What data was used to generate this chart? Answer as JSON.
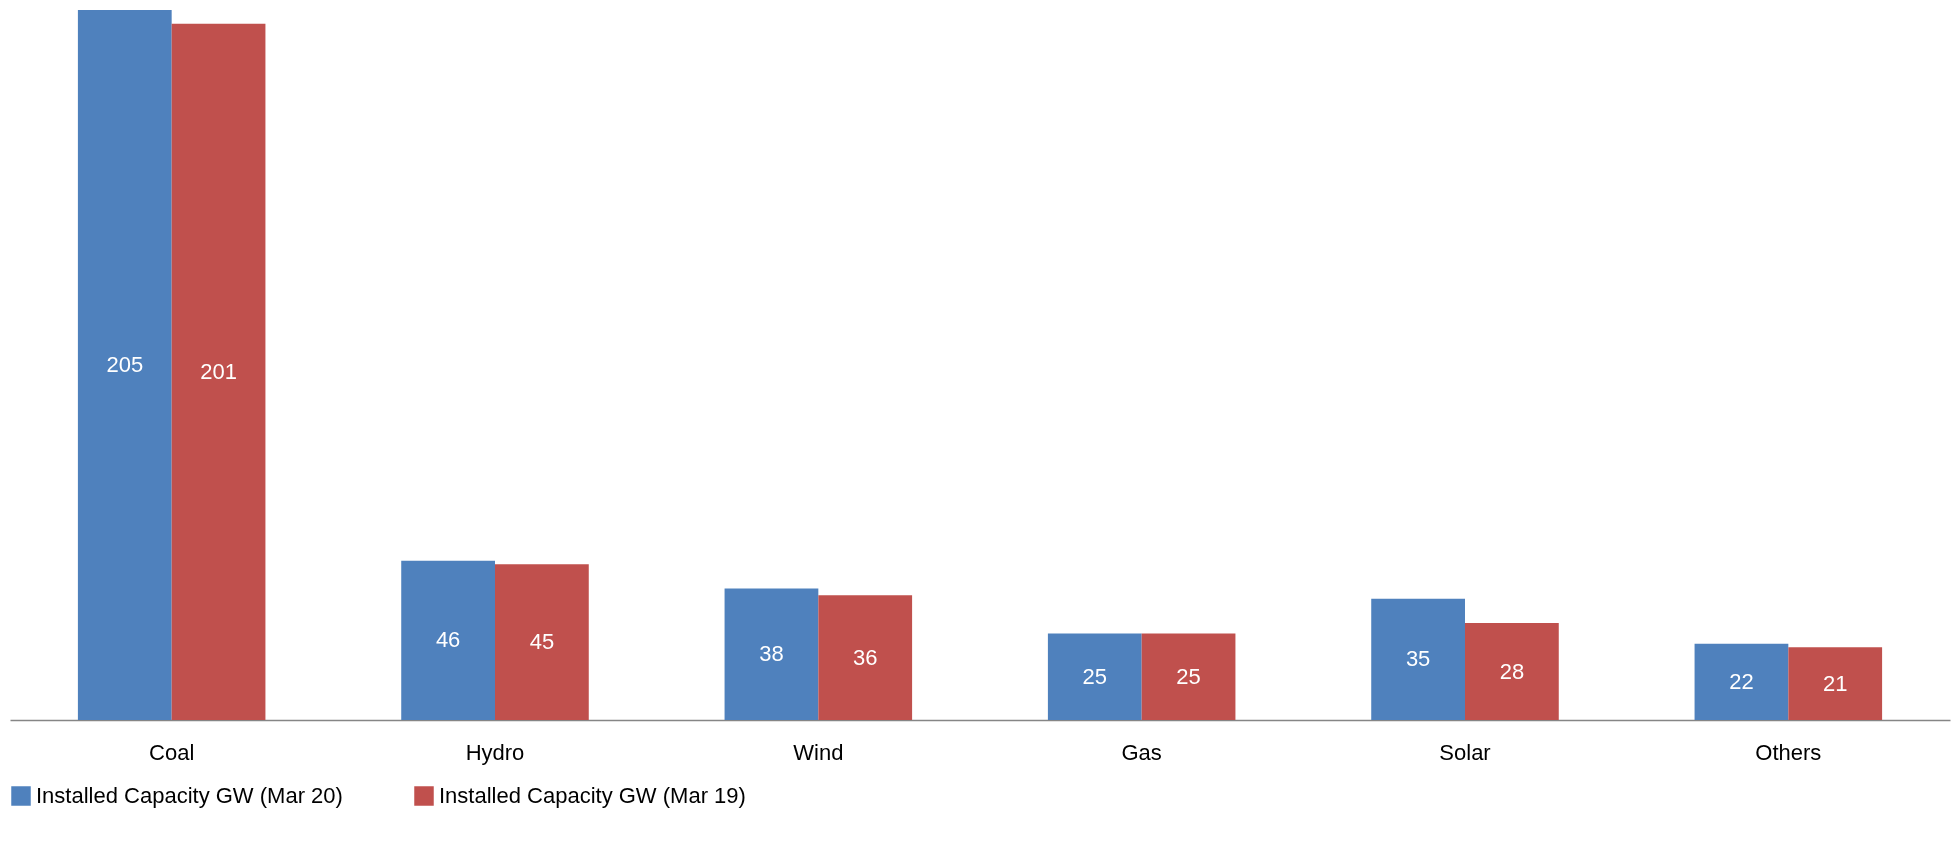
{
  "chart_data": {
    "type": "bar",
    "categories": [
      "Coal",
      "Hydro",
      "Wind",
      "Gas",
      "Solar",
      "Others"
    ],
    "series": [
      {
        "name": "Installed Capacity GW (Mar 20)",
        "color": "#4f81bd",
        "values": [
          205,
          46,
          38,
          25,
          35,
          22
        ]
      },
      {
        "name": "Installed Capacity GW (Mar 19)",
        "color": "#c0504d",
        "values": [
          201,
          45,
          36,
          25,
          28,
          21
        ]
      }
    ],
    "data_labels": true,
    "legend": "bottom"
  }
}
